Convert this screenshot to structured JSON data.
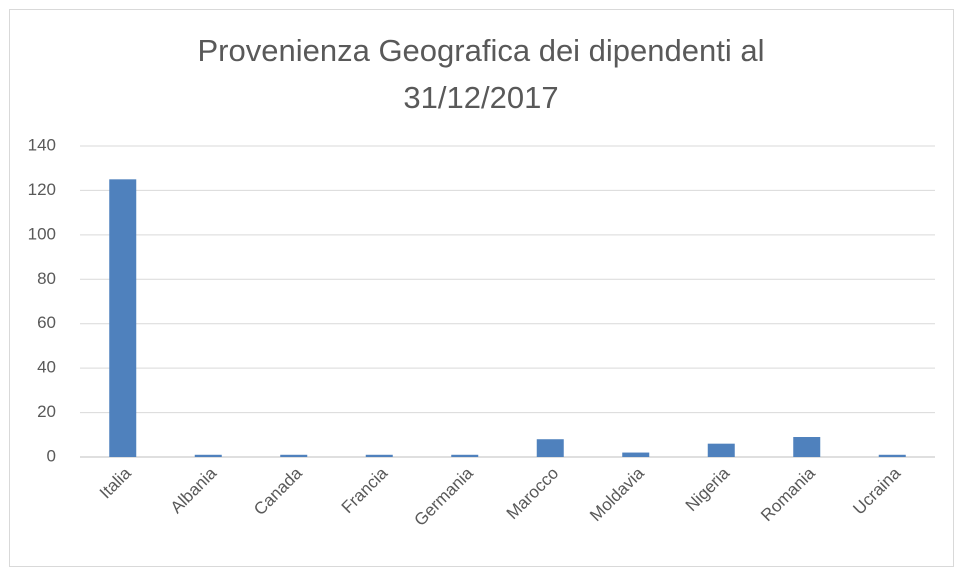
{
  "chart_data": {
    "type": "bar",
    "title": "Provenienza Geografica dei dipendenti al 31/12/2017",
    "categories": [
      "Italia",
      "Albania",
      "Canada",
      "Francia",
      "Germania",
      "Marocco",
      "Moldavia",
      "Nigeria",
      "Romania",
      "Ucraina"
    ],
    "values": [
      125,
      1,
      1,
      1,
      1,
      8,
      2,
      6,
      9,
      1
    ],
    "color": "#4f81bd",
    "ylim": [
      0,
      140
    ],
    "yticks": [
      0,
      20,
      40,
      60,
      80,
      100,
      120,
      140
    ],
    "grid": true
  }
}
